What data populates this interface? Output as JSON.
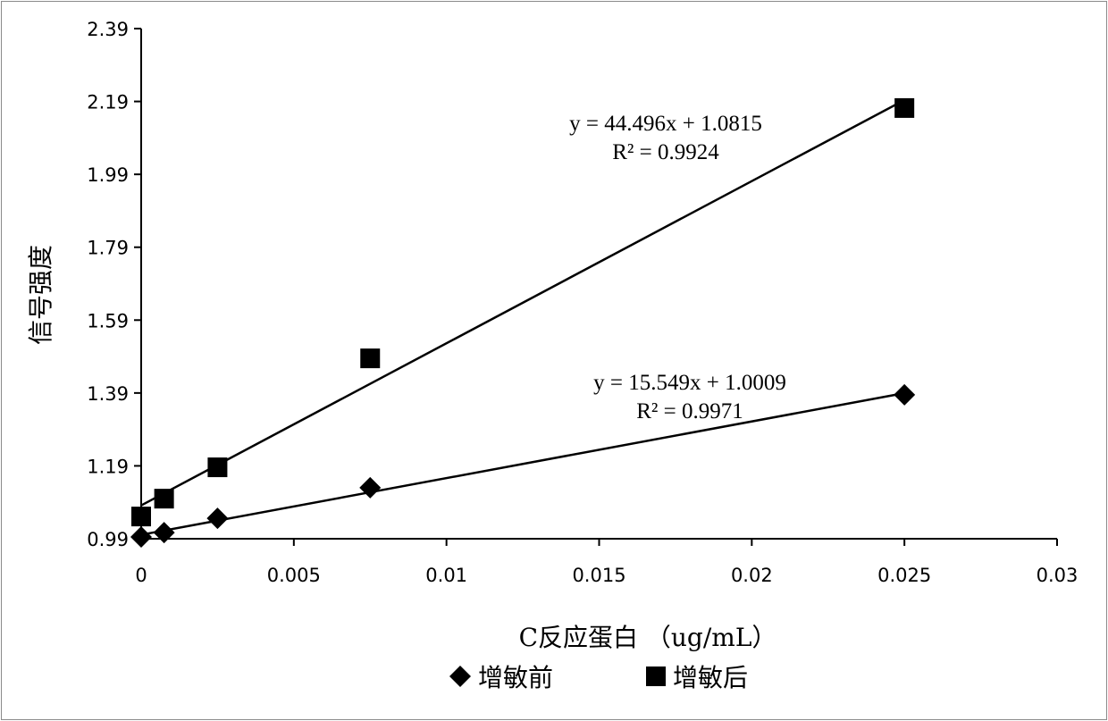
{
  "chart_data": {
    "type": "scatter",
    "title": "",
    "xlabel": "C反应蛋白 （ug/mL）",
    "ylabel": "信号强度",
    "xlim": [
      0,
      0.03
    ],
    "ylim": [
      0.99,
      2.39
    ],
    "x_ticks": [
      "0",
      "0.005",
      "0.01",
      "0.015",
      "0.02",
      "0.025",
      "0.03"
    ],
    "x_tick_values": [
      0,
      0.005,
      0.01,
      0.015,
      0.02,
      0.025,
      0.03
    ],
    "y_ticks": [
      "0.99",
      "1.19",
      "1.39",
      "1.59",
      "1.79",
      "1.99",
      "2.19",
      "2.39"
    ],
    "y_tick_values": [
      0.99,
      1.19,
      1.39,
      1.59,
      1.79,
      1.99,
      2.19,
      2.39
    ],
    "grid": false,
    "legend_position": "bottom",
    "series": [
      {
        "name": "增敏前",
        "marker": "diamond",
        "x": [
          0,
          0.00075,
          0.0025,
          0.0075,
          0.025
        ],
        "y": [
          0.995,
          1.007,
          1.046,
          1.13,
          1.385
        ],
        "trendline": {
          "slope": 15.549,
          "intercept": 1.0009,
          "equation": "y = 15.549x + 1.0009",
          "r2": "R² = 0.9971"
        }
      },
      {
        "name": "增敏后",
        "marker": "square",
        "x": [
          0,
          0.00075,
          0.0025,
          0.0075,
          0.025
        ],
        "y": [
          1.051,
          1.1,
          1.186,
          1.485,
          2.172
        ],
        "trendline": {
          "slope": 44.496,
          "intercept": 1.0815,
          "equation": "y = 44.496x + 1.0815",
          "r2": "R² = 0.9924"
        }
      }
    ],
    "colors": {
      "marker": "#000000",
      "line": "#000000",
      "border": "#8a8a8a"
    }
  }
}
